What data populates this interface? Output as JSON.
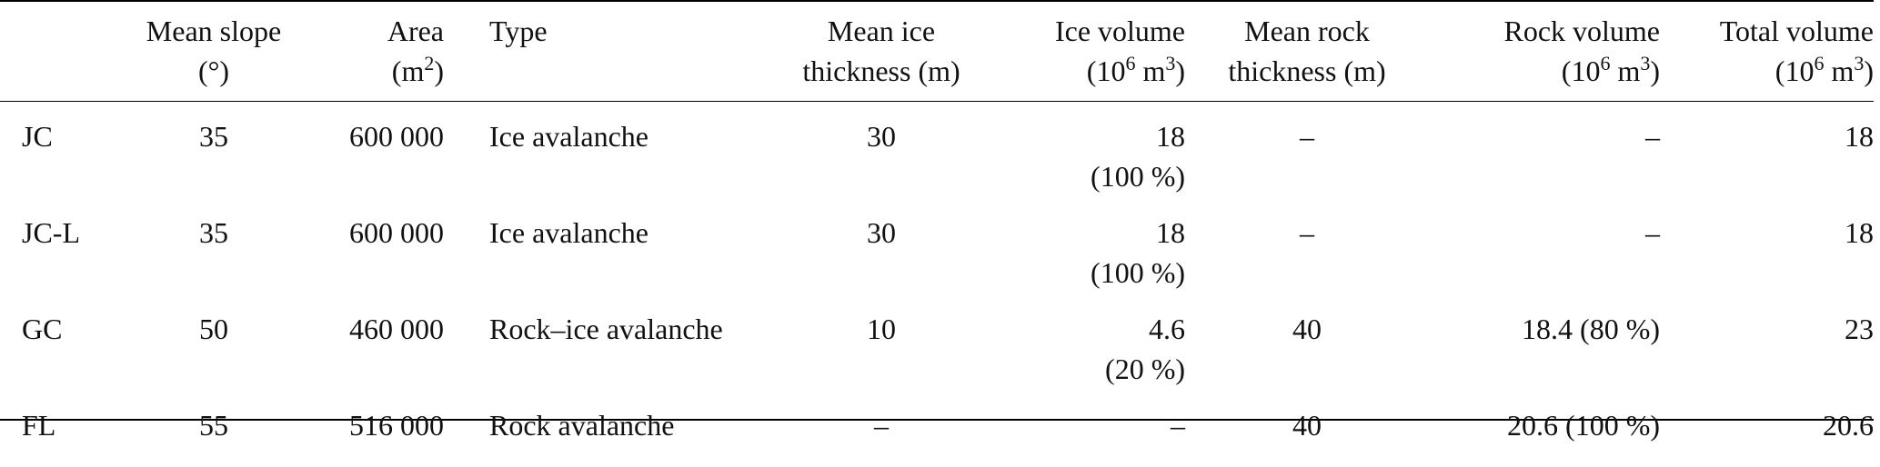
{
  "header": {
    "mean_slope": [
      "Mean slope",
      "(°)"
    ],
    "area": {
      "line1": "Area",
      "line2_base": "(m",
      "line2_sup": "2",
      "line2_end": ")"
    },
    "type": "Type",
    "mean_ice_thickness": [
      "Mean ice",
      "thickness (m)"
    ],
    "ice_volume": {
      "line1": "Ice volume",
      "line2_base": "(10",
      "line2_sup": "6",
      "line2_unit": " m",
      "line2_sup2": "3",
      "line2_end": ")"
    },
    "mean_rock_thickness": [
      "Mean rock",
      "thickness (m)"
    ],
    "rock_volume": {
      "line1": "Rock volume",
      "line2_base": "(10",
      "line2_sup": "6",
      "line2_unit": " m",
      "line2_sup2": "3",
      "line2_end": ")"
    },
    "total_volume": {
      "line1": "Total volume",
      "line2_base": "(10",
      "line2_sup": "6",
      "line2_unit": " m",
      "line2_sup2": "3",
      "line2_end": ")"
    }
  },
  "rows": [
    {
      "id": "JC",
      "slope": "35",
      "area": "600 000",
      "type": "Ice avalanche",
      "ice_thickness": "30",
      "ice_volume": "18",
      "ice_pct": "(100 %)",
      "rock_thickness": "–",
      "rock_volume": "–",
      "total": "18"
    },
    {
      "id": "JC-L",
      "slope": "35",
      "area": "600 000",
      "type": "Ice avalanche",
      "ice_thickness": "30",
      "ice_volume": "18",
      "ice_pct": "(100 %)",
      "rock_thickness": "–",
      "rock_volume": "–",
      "total": "18"
    },
    {
      "id": "GC",
      "slope": "50",
      "area": "460 000",
      "type": "Rock–ice avalanche",
      "ice_thickness": "10",
      "ice_volume": "4.6",
      "ice_pct": "(20 %)",
      "rock_thickness": "40",
      "rock_volume": "18.4 (80 %)",
      "total": "23"
    },
    {
      "id": "FL",
      "slope": "55",
      "area": "516 000",
      "type": "Rock avalanche",
      "ice_thickness": "–",
      "ice_volume": "–",
      "ice_pct": "",
      "rock_thickness": "40",
      "rock_volume": "20.6 (100 %)",
      "total": "20.6"
    }
  ]
}
